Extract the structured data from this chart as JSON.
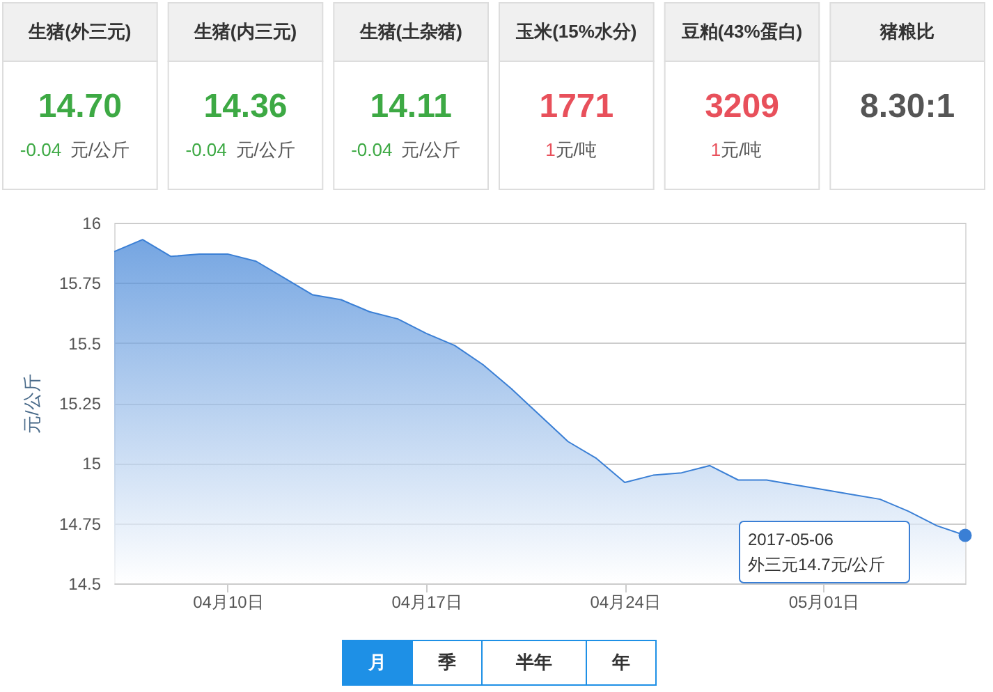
{
  "chart_data": {
    "type": "area",
    "ylabel": "元/公斤",
    "x": [
      "2017-04-06",
      "2017-04-07",
      "2017-04-08",
      "2017-04-09",
      "2017-04-10",
      "2017-04-11",
      "2017-04-12",
      "2017-04-13",
      "2017-04-14",
      "2017-04-15",
      "2017-04-16",
      "2017-04-17",
      "2017-04-18",
      "2017-04-19",
      "2017-04-20",
      "2017-04-21",
      "2017-04-22",
      "2017-04-23",
      "2017-04-24",
      "2017-04-25",
      "2017-04-26",
      "2017-04-27",
      "2017-04-28",
      "2017-04-29",
      "2017-04-30",
      "2017-05-01",
      "2017-05-02",
      "2017-05-03",
      "2017-05-04",
      "2017-05-05",
      "2017-05-06"
    ],
    "series": [
      {
        "color": "#3a7fd5",
        "values": [
          15.88,
          15.93,
          15.86,
          15.87,
          15.87,
          15.84,
          15.77,
          15.7,
          15.68,
          15.63,
          15.6,
          15.54,
          15.49,
          15.41,
          15.31,
          15.2,
          15.09,
          15.02,
          14.92,
          14.95,
          14.96,
          14.99,
          14.93,
          14.93,
          14.91,
          14.89,
          14.87,
          14.85,
          14.8,
          14.74,
          14.7
        ]
      }
    ],
    "xlim": [
      "2017-04-06",
      "2017-05-06"
    ],
    "xticks": [
      {
        "value": "2017-04-10",
        "label": "04月10日"
      },
      {
        "value": "2017-04-17",
        "label": "04月17日"
      },
      {
        "value": "2017-04-24",
        "label": "04月24日"
      },
      {
        "value": "2017-05-01",
        "label": "05月01日"
      }
    ],
    "ylim": [
      14.5,
      16
    ],
    "yticks": [
      14.5,
      14.75,
      15,
      15.25,
      15.5,
      15.75,
      16
    ],
    "grid": "y",
    "marker": "none",
    "annotations": [
      "生猪(外三元)",
      "生猪(内三元)",
      "生猪(土杂猪)",
      "玉米(15%水分)",
      "豆粕(43%蛋白)",
      "猪粮比",
      "14.70",
      "14.36",
      "14.11",
      "1771",
      "3209",
      "8.30:1",
      "-0.04元/公斤",
      "-0.04元/公斤",
      "-0.04元/公斤",
      "1元/吨",
      "1元/吨",
      "月",
      "季",
      "半年",
      "年",
      "2017-05-06\n外三元14.7元/公斤"
    ]
  }
}
